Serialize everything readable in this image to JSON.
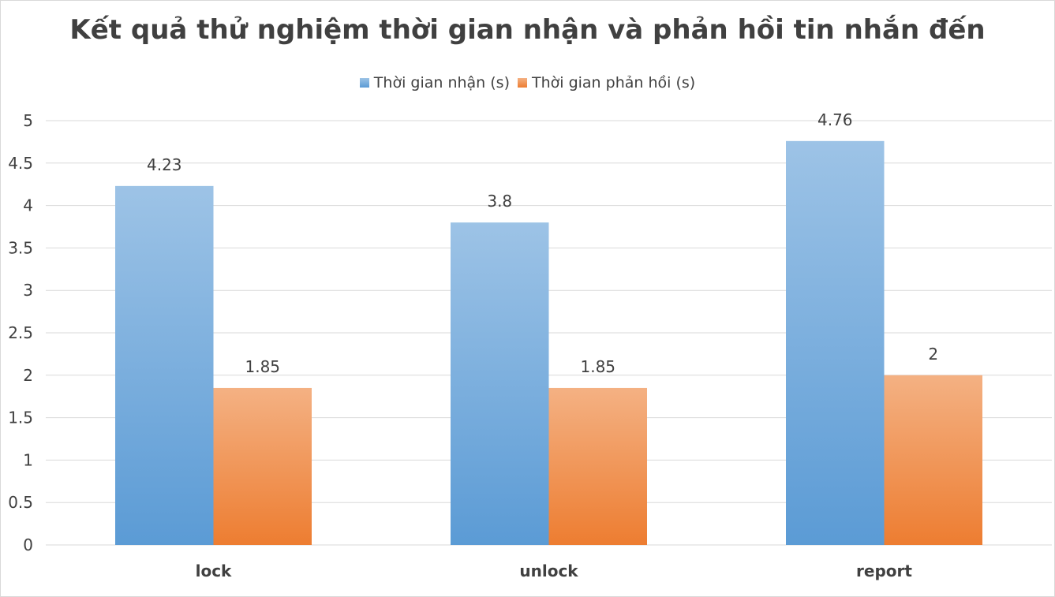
{
  "chart_data": {
    "type": "bar",
    "title": "Kết quả thử nghiệm thời gian nhận và phản hồi tin nhắn đến",
    "xlabel": "",
    "ylabel": "",
    "categories": [
      "lock",
      "unlock",
      "report"
    ],
    "series": [
      {
        "name": "Thời gian nhận (s)",
        "values": [
          4.23,
          3.8,
          4.76
        ],
        "color": "#5b9bd5",
        "color_light": "#9dc3e6"
      },
      {
        "name": "Thời gian phản hồi (s)",
        "values": [
          1.85,
          1.85,
          2
        ],
        "color": "#ed7d31",
        "color_light": "#f4b183"
      }
    ],
    "ylim": [
      0,
      5
    ],
    "yticks": [
      "0",
      "0.5",
      "1",
      "1.5",
      "2",
      "2.5",
      "3",
      "3.5",
      "4",
      "4.5",
      "5"
    ],
    "grid": true,
    "legend_position": "top",
    "data_labels": true
  }
}
